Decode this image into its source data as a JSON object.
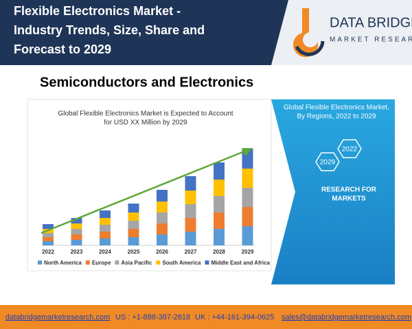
{
  "header": {
    "title": [
      "Flexible Electronics Market -",
      "Industry Trends, Size, Share and",
      "Forecast to 2029"
    ],
    "logo": [
      "DATA BRIDGE",
      "MARKET RESEARCH"
    ]
  },
  "section_title": "Semiconductors and Electronics",
  "chart_data": {
    "type": "stacked-bar",
    "title": [
      "Global Flexible Electronics Market is Expected to Account",
      "for USD XX Million by 2029"
    ],
    "categories": [
      "2022",
      "2023",
      "2024",
      "2025",
      "2026",
      "2027",
      "2028",
      "2029"
    ],
    "series": [
      {
        "name": "North America",
        "color": "#5b9bd5",
        "values": [
          6,
          8,
          10,
          12,
          16,
          20,
          24,
          28
        ]
      },
      {
        "name": "Europe",
        "color": "#ed7d31",
        "values": [
          6,
          8,
          10,
          12,
          16,
          20,
          24,
          28
        ]
      },
      {
        "name": "Asia Pacific",
        "color": "#a5a5a5",
        "values": [
          6,
          8,
          10,
          12,
          16,
          20,
          24,
          28
        ]
      },
      {
        "name": "South America",
        "color": "#ffc000",
        "values": [
          6,
          8,
          10,
          12,
          16,
          20,
          24,
          28
        ]
      },
      {
        "name": "Middle East and Africa",
        "color": "#4472c4",
        "values": [
          7,
          8,
          11,
          13,
          17,
          21,
          25,
          29
        ]
      }
    ]
  },
  "side_panel": {
    "title": [
      "Global Flexible Electronics Market,",
      "By Regions, 2022 to 2029"
    ],
    "hexagons": [
      "2029",
      "2022"
    ],
    "tagline": [
      "RESEARCH FOR",
      "MARKETS"
    ]
  },
  "footer": {
    "website": "databridgemarketresearch.com",
    "us": "US : +1-888-387-2818",
    "uk": "UK : +44-161-394-0625",
    "email": "sales@databridgemarketresearch.com"
  }
}
